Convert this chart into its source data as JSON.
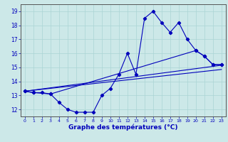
{
  "hours": [
    0,
    1,
    2,
    3,
    4,
    5,
    6,
    7,
    8,
    9,
    10,
    11,
    12,
    13,
    14,
    15,
    16,
    17,
    18,
    19,
    20,
    21,
    22,
    23
  ],
  "temp_main": [
    13.3,
    13.2,
    13.2,
    13.1,
    12.5,
    12.0,
    11.8,
    11.8,
    11.8,
    13.0,
    13.5,
    14.5,
    16.0,
    14.5,
    18.5,
    19.0,
    18.2,
    17.5,
    18.2,
    17.0,
    16.2,
    15.8,
    15.2,
    15.2
  ],
  "temp_upper_x": [
    0,
    1,
    3,
    20,
    21,
    22,
    23
  ],
  "temp_upper_y": [
    13.3,
    13.2,
    13.1,
    16.2,
    15.8,
    15.2,
    15.2
  ],
  "trend1_x": [
    0,
    23
  ],
  "trend1_y": [
    13.3,
    15.15
  ],
  "trend2_x": [
    0,
    23
  ],
  "trend2_y": [
    13.3,
    14.85
  ],
  "xlim": [
    -0.5,
    23.5
  ],
  "ylim": [
    11.5,
    19.5
  ],
  "yticks": [
    12,
    13,
    14,
    15,
    16,
    17,
    18,
    19
  ],
  "xticks": [
    0,
    1,
    2,
    3,
    4,
    5,
    6,
    7,
    8,
    9,
    10,
    11,
    12,
    13,
    14,
    15,
    16,
    17,
    18,
    19,
    20,
    21,
    22,
    23
  ],
  "xlabel": "Graphe des températures (°C)",
  "line_color": "#0000bb",
  "bg_color": "#cce8e8",
  "grid_color": "#aad4d4",
  "spine_color": "#555555"
}
